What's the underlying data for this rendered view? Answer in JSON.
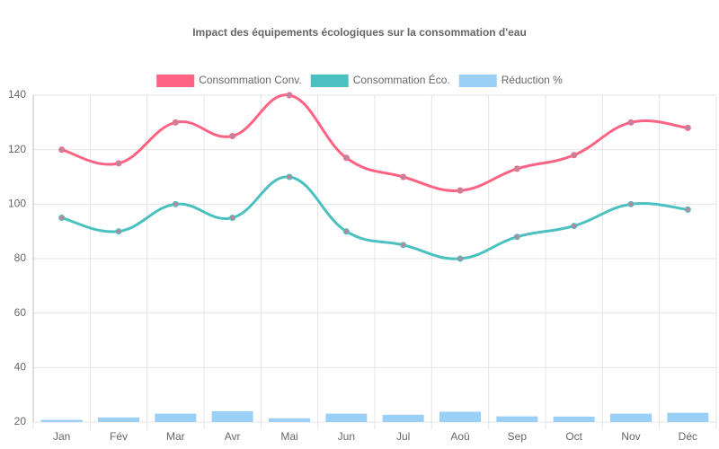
{
  "chart_data": {
    "type": "combo",
    "title": "Impact des équipements écologiques sur la consommation d'eau",
    "categories": [
      "Jan",
      "Fév",
      "Mar",
      "Avr",
      "Mai",
      "Jun",
      "Jul",
      "Aoû",
      "Sep",
      "Oct",
      "Nov",
      "Déc"
    ],
    "series": [
      {
        "name": "Consommation Conv.",
        "type": "line",
        "color": "#ff6384",
        "values": [
          120,
          115,
          130,
          125,
          140,
          117,
          110,
          105,
          113,
          118,
          130,
          128
        ]
      },
      {
        "name": "Consommation Éco.",
        "type": "line",
        "color": "#4bc0c0",
        "values": [
          95,
          90,
          100,
          95,
          110,
          90,
          85,
          80,
          88,
          92,
          100,
          98
        ]
      },
      {
        "name": "Réduction %",
        "type": "bar",
        "color": "#9ad0f5",
        "values": [
          20.8,
          21.7,
          23.1,
          24.0,
          21.4,
          23.1,
          22.7,
          23.8,
          22.1,
          22.0,
          23.1,
          23.4
        ]
      }
    ],
    "ylim": [
      20,
      140
    ],
    "yticks": [
      20,
      40,
      60,
      80,
      100,
      120,
      140
    ],
    "grid": true,
    "legend": "top"
  }
}
